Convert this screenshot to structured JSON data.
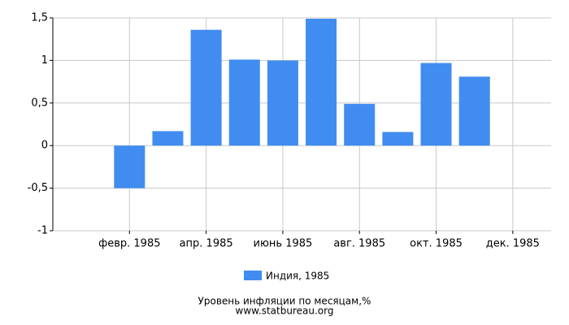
{
  "chart_data": {
    "type": "bar",
    "categories": [
      null,
      "февр. 1985",
      null,
      "апр. 1985",
      null,
      "июнь 1985",
      null,
      "авг. 1985",
      null,
      "окт. 1985",
      null,
      "дек. 1985"
    ],
    "series": [
      {
        "name": "Индия, 1985",
        "color": "#418cf0",
        "values": [
          null,
          -0.5,
          0.17,
          1.36,
          1.01,
          1.0,
          1.49,
          0.49,
          0.16,
          0.97,
          0.81,
          null
        ]
      }
    ],
    "ylim": [
      -1,
      1.5
    ],
    "yticks": [
      {
        "value": -1,
        "label": "-1"
      },
      {
        "value": -0.5,
        "label": "-0,5"
      },
      0,
      {
        "value": 0.5,
        "label": "0,5"
      },
      1,
      {
        "value": 1.5,
        "label": "1,5"
      }
    ],
    "grid": true,
    "xlabel": "Уровень инфляции по месяцам,%",
    "source": "www.statbureau.org"
  }
}
